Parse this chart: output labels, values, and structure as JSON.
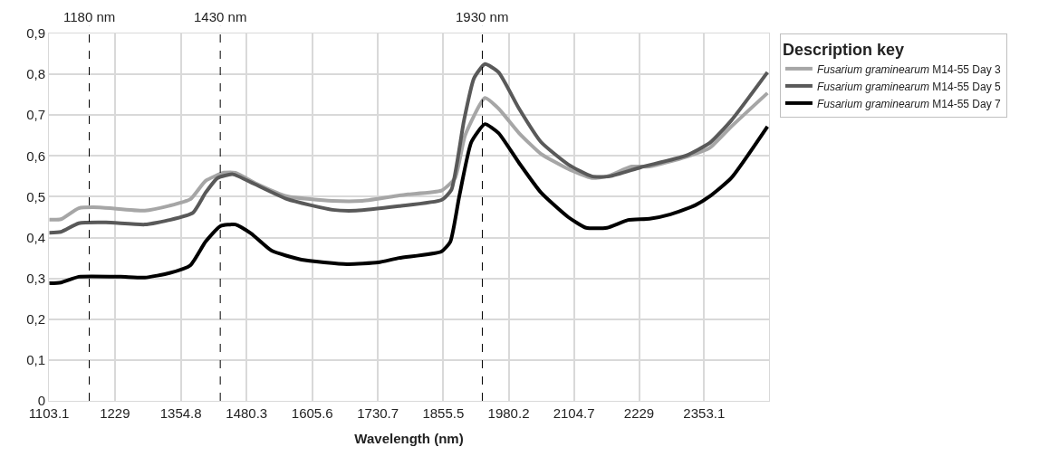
{
  "chart_data": {
    "type": "line",
    "xlabel": "Wavelength (nm)",
    "legend_title": "Description key",
    "xlim": [
      1103.1,
      2477
    ],
    "xticks": [
      1103.1,
      1229,
      1354.8,
      1480.3,
      1605.6,
      1730.7,
      1855.5,
      1980.2,
      2104.7,
      2229,
      2353.1
    ],
    "ylim": [
      0,
      0.9
    ],
    "yticks": [
      0,
      {
        "value": 0.1,
        "label": "0,1"
      },
      {
        "value": 0.2,
        "label": "0,2"
      },
      {
        "value": 0.3,
        "label": "0,3"
      },
      {
        "value": 0.4,
        "label": "0,4"
      },
      {
        "value": 0.5,
        "label": "0,5"
      },
      {
        "value": 0.6,
        "label": "0,6"
      },
      {
        "value": 0.7,
        "label": "0,7"
      },
      {
        "value": 0.8,
        "label": "0,8"
      },
      {
        "value": 0.9,
        "label": "0,9"
      }
    ],
    "grid": true,
    "legend": "top right",
    "line_style": "solid",
    "ref_lines": [
      {
        "axis": "x",
        "value": 1180,
        "label": "1180 nm",
        "color": "#000000",
        "line_style": "dashed"
      },
      {
        "axis": "x",
        "value": 1430,
        "label": "1430 nm",
        "color": "#000000",
        "line_style": "dashed"
      },
      {
        "axis": "x",
        "value": 1930,
        "label": "1930 nm",
        "color": "#000000",
        "line_style": "dashed"
      }
    ],
    "series": [
      {
        "name": "Fusarium graminearum M14-55 Day 3",
        "color": "#a6a6a6",
        "x": [
          1104,
          1126,
          1160,
          1200,
          1286,
          1333,
          1373,
          1402,
          1437,
          1459,
          1499,
          1558,
          1644,
          1701,
          1771,
          1788,
          1852,
          1878,
          1897,
          1935,
          1961,
          2000,
          2042,
          2094,
          2139,
          2168,
          2215,
          2249,
          2319,
          2364,
          2405,
          2474
        ],
        "values": [
          0.444,
          0.445,
          0.472,
          0.474,
          0.466,
          0.478,
          0.494,
          0.539,
          0.559,
          0.559,
          0.532,
          0.501,
          0.49,
          0.49,
          0.503,
          0.506,
          0.515,
          0.546,
          0.65,
          0.742,
          0.716,
          0.656,
          0.605,
          0.568,
          0.546,
          0.55,
          0.574,
          0.574,
          0.598,
          0.62,
          0.672,
          0.754
        ]
      },
      {
        "name": "Fusarium graminearum M14-55 Day 5",
        "color": "#595959",
        "x": [
          1104,
          1126,
          1160,
          1212,
          1286,
          1333,
          1378,
          1402,
          1425,
          1454,
          1494,
          1558,
          1644,
          1689,
          1771,
          1852,
          1871,
          1895,
          1914,
          1935,
          1961,
          2000,
          2042,
          2094,
          2139,
          2173,
          2232,
          2319,
          2364,
          2405,
          2474
        ],
        "values": [
          0.412,
          0.414,
          0.435,
          0.437,
          0.432,
          0.443,
          0.461,
          0.51,
          0.546,
          0.555,
          0.532,
          0.494,
          0.468,
          0.466,
          0.477,
          0.492,
          0.517,
          0.687,
          0.79,
          0.825,
          0.805,
          0.716,
          0.634,
          0.579,
          0.55,
          0.55,
          0.572,
          0.601,
          0.632,
          0.687,
          0.805
        ]
      },
      {
        "name": "Fusarium graminearum M14-55 Day 7",
        "color": "#000000",
        "x": [
          1104,
          1126,
          1160,
          1240,
          1286,
          1333,
          1373,
          1402,
          1430,
          1459,
          1489,
          1528,
          1585,
          1672,
          1731,
          1771,
          1852,
          1869,
          1886,
          1909,
          1935,
          1961,
          2000,
          2042,
          2094,
          2128,
          2168,
          2208,
          2249,
          2289,
          2336,
          2364,
          2405,
          2474
        ],
        "values": [
          0.288,
          0.29,
          0.304,
          0.304,
          0.302,
          0.313,
          0.332,
          0.39,
          0.428,
          0.432,
          0.41,
          0.368,
          0.346,
          0.335,
          0.339,
          0.35,
          0.366,
          0.39,
          0.501,
          0.634,
          0.678,
          0.656,
          0.583,
          0.51,
          0.45,
          0.424,
          0.424,
          0.443,
          0.446,
          0.457,
          0.479,
          0.501,
          0.546,
          0.672
        ]
      }
    ]
  }
}
